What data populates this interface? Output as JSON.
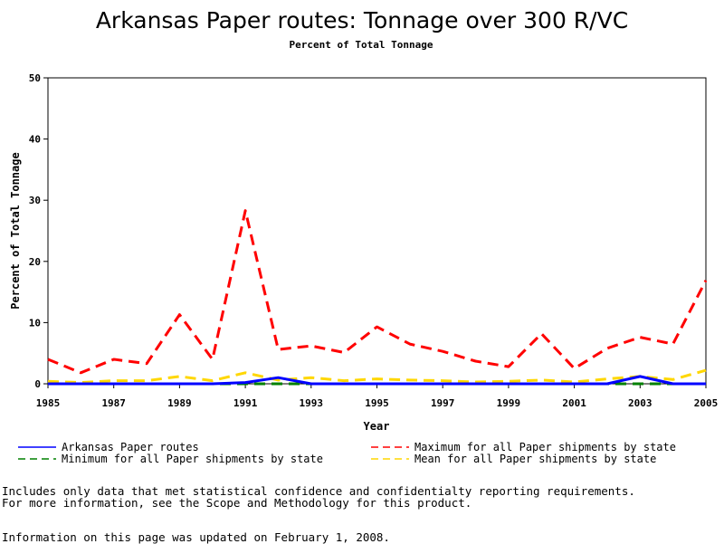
{
  "chart_data": {
    "type": "line",
    "title": "Arkansas Paper routes: Tonnage over 300 R/VC",
    "subtitle": "Percent of Total Tonnage",
    "xlabel": "Year",
    "ylabel": "Percent of Total Tonnage",
    "xlim": [
      1985,
      2005
    ],
    "ylim": [
      0,
      50
    ],
    "x_ticks": [
      "1985",
      "1987",
      "1989",
      "1991",
      "1993",
      "1995",
      "1997",
      "1999",
      "2001",
      "2003",
      "2005"
    ],
    "y_ticks": [
      "0",
      "10",
      "20",
      "30",
      "40",
      "50"
    ],
    "legend_position": "bottom",
    "x": [
      1985,
      1986,
      1987,
      1988,
      1989,
      1990,
      1991,
      1992,
      1993,
      1994,
      1995,
      1996,
      1997,
      1998,
      1999,
      2000,
      2001,
      2002,
      2003,
      2004,
      2005
    ],
    "series": [
      {
        "name": "Arkansas Paper routes",
        "color": "#0000ff",
        "dash": "solid",
        "values": [
          0,
          0,
          0,
          0,
          0,
          0,
          0.2,
          1.0,
          0,
          0,
          0,
          0,
          0,
          0,
          0,
          0,
          0,
          0,
          1.2,
          0,
          0
        ]
      },
      {
        "name": "Maximum for all Paper shipments by state",
        "color": "#ff0000",
        "dash": "dashed",
        "values": [
          4.0,
          1.8,
          4.0,
          3.3,
          11.3,
          4.0,
          28.3,
          5.6,
          6.2,
          5.1,
          9.3,
          6.5,
          5.3,
          3.7,
          2.8,
          8.2,
          2.5,
          5.8,
          7.6,
          6.5,
          16.9
        ]
      },
      {
        "name": "Minimum for all Paper shipments by state",
        "color": "#008000",
        "dash": "dashed",
        "values": [
          0,
          0,
          0,
          0,
          0,
          0,
          0,
          0,
          0,
          0,
          0,
          0,
          0,
          0,
          0,
          0,
          0,
          0,
          0,
          0,
          0
        ]
      },
      {
        "name": "Mean for all Paper shipments by state",
        "color": "#ffd700",
        "dash": "dashed",
        "values": [
          0.4,
          0.2,
          0.5,
          0.5,
          1.2,
          0.5,
          1.8,
          0.6,
          1.0,
          0.5,
          0.8,
          0.6,
          0.5,
          0.3,
          0.4,
          0.6,
          0.3,
          0.8,
          1.2,
          0.7,
          2.2
        ]
      }
    ]
  },
  "notes": {
    "line1": "Includes only data that met statistical confidence and confidentialty reporting requirements.",
    "line2": "For more information, see the Scope and Methodology for this product.",
    "updated": "Information on this page was updated on February 1, 2008."
  }
}
